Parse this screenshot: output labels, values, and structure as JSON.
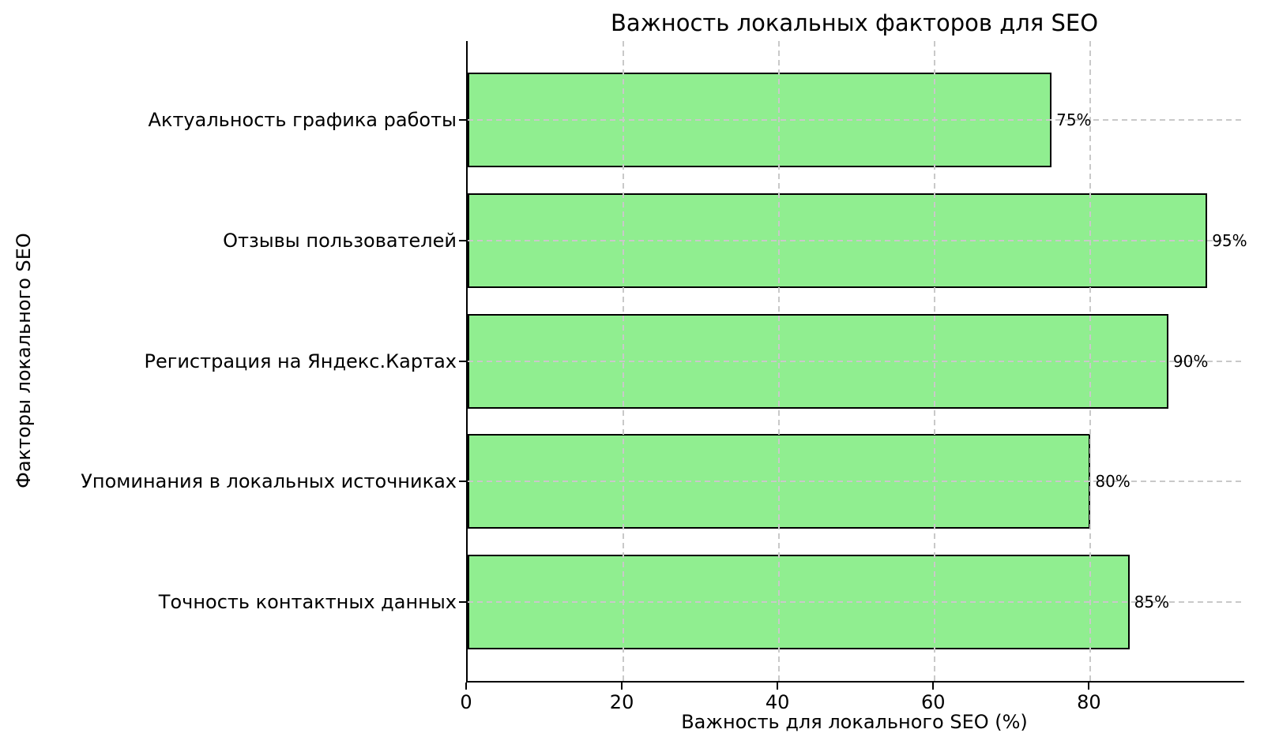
{
  "chart_data": {
    "type": "bar",
    "orientation": "horizontal",
    "title": "Важность локальных факторов для SEO",
    "xlabel": "Важность для локального SEO (%)",
    "ylabel": "Факторы локального SEO",
    "categories": [
      "Актуальность графика работы",
      "Отзывы пользователей",
      "Регистрация на Яндекс.Картах",
      "Упоминания в локальных источниках",
      "Точность контактных данных"
    ],
    "values": [
      75,
      95,
      90,
      80,
      85
    ],
    "value_labels": [
      "75%",
      "95%",
      "90%",
      "80%",
      "85%"
    ],
    "xticks": [
      0,
      20,
      40,
      60,
      80
    ],
    "xlim": [
      0,
      99.75
    ],
    "grid": true,
    "grid_style": "dashed",
    "legend": "none",
    "colors": {
      "bar_fill": "#90EE90",
      "bar_edge": "#000000",
      "grid": "#c9c9c9",
      "text": "#000000",
      "background": "#ffffff"
    }
  }
}
